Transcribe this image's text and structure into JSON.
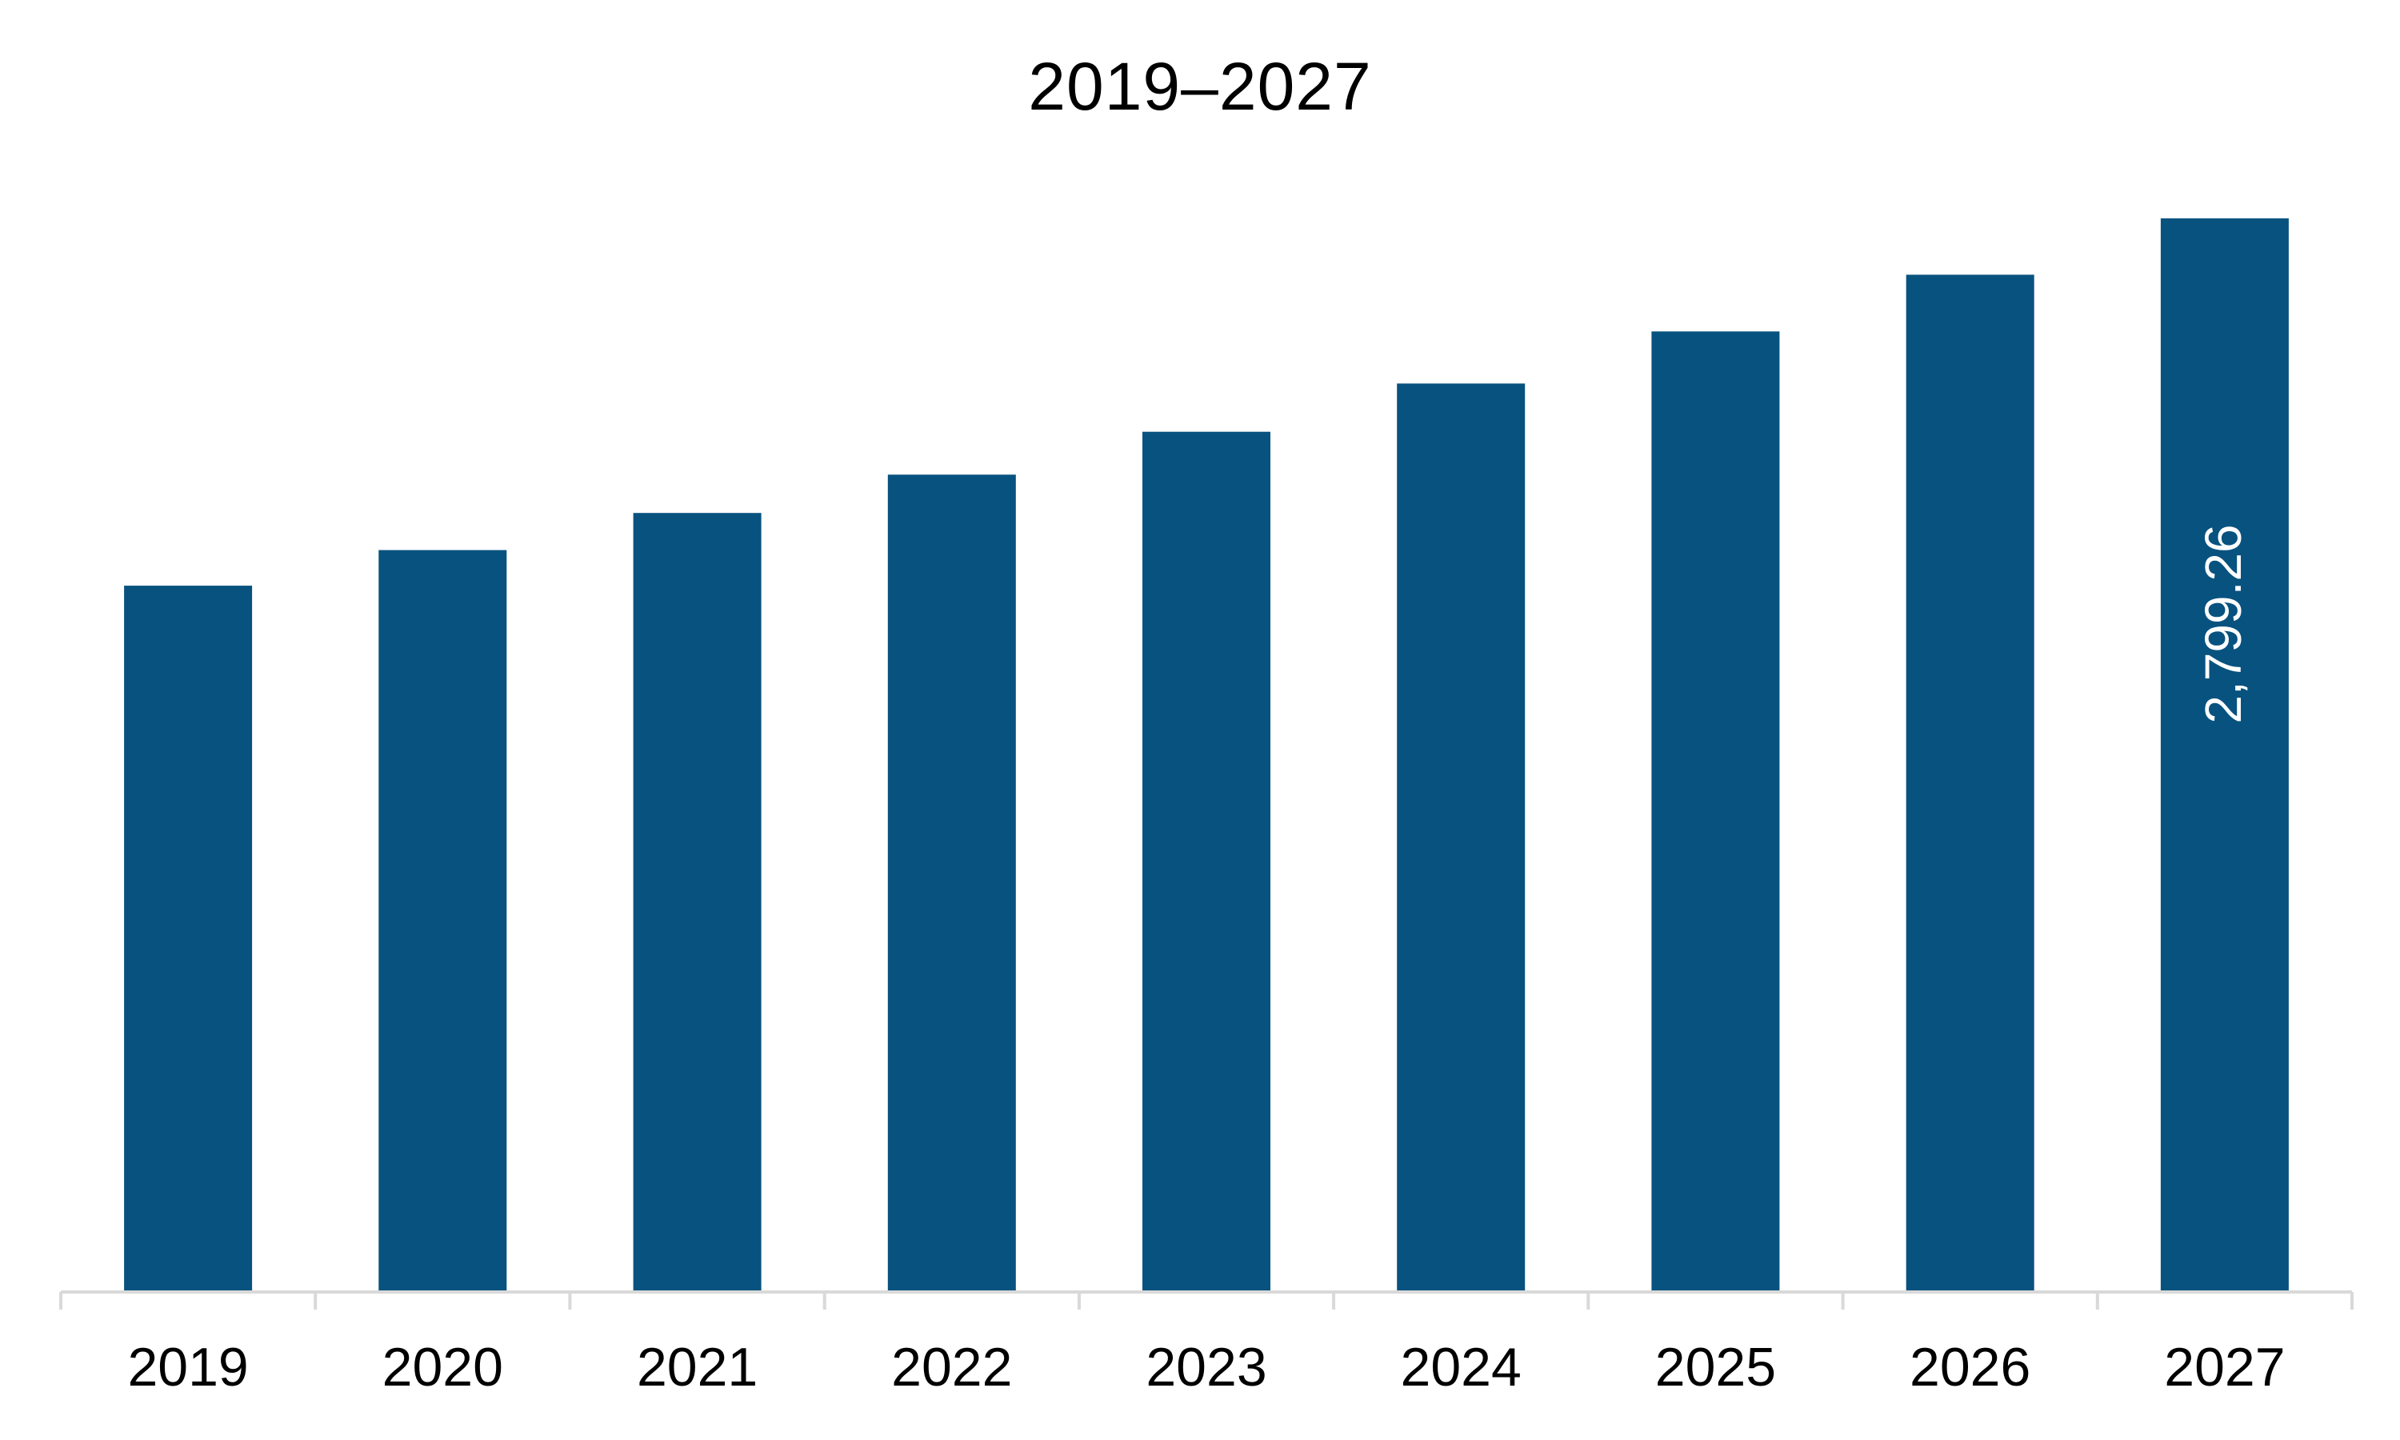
{
  "chart_data": {
    "type": "bar",
    "title": "2019–2027",
    "xlabel": "",
    "ylabel": "",
    "categories": [
      "2019",
      "2020",
      "2021",
      "2022",
      "2023",
      "2024",
      "2025",
      "2026",
      "2027"
    ],
    "values": [
      1840,
      1933,
      2030,
      2130,
      2242,
      2368,
      2504,
      2652,
      2799.26
    ],
    "data_labels": [
      "",
      "",
      "",
      "",
      "",
      "",
      "",
      "",
      "2,799.26"
    ],
    "ylim": [
      0,
      2820
    ],
    "grid": false,
    "legend": "none",
    "bar_color": "#08527f",
    "axis_color": "#d9d9d9",
    "label_color": "#ffffff",
    "text_color": "#000000"
  }
}
